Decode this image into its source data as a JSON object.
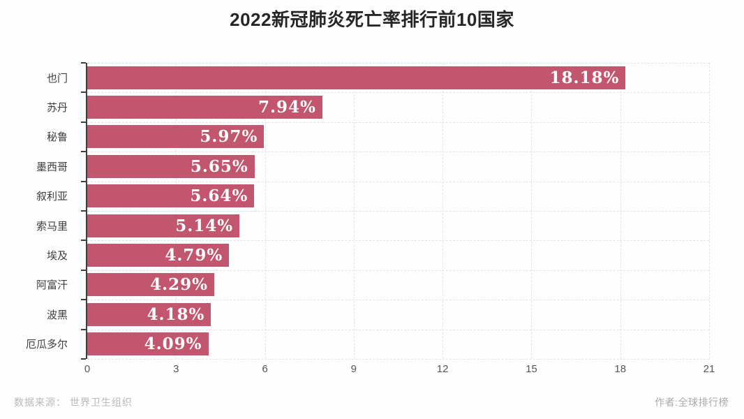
{
  "page": {
    "background": "#fefefe"
  },
  "title": "2022新冠肺炎死亡率排行前10国家",
  "footer": {
    "source": "数据来源： 世界卫生组织",
    "author": "作者:全球排行榜"
  },
  "colors": {
    "bar": "#c2566e",
    "value_label": "#ffffff",
    "axis": "#3f3f3f",
    "gridline": "#dfe3ea",
    "title_text": "#262626",
    "category_text": "#3d3d3d",
    "tick_text": "#555555",
    "footer_text": "#b9b9b9"
  },
  "chart_data": {
    "type": "bar",
    "orientation": "horizontal",
    "title": "2022新冠肺炎死亡率排行前10国家",
    "categories": [
      "也门",
      "苏丹",
      "秘鲁",
      "墨西哥",
      "叙利亚",
      "索马里",
      "埃及",
      "阿富汗",
      "波黑",
      "厄瓜多尔"
    ],
    "values": [
      18.18,
      7.94,
      5.97,
      5.65,
      5.64,
      5.14,
      4.79,
      4.29,
      4.18,
      4.09
    ],
    "value_labels": [
      "18.18%",
      "7.94%",
      "5.97%",
      "5.65%",
      "5.64%",
      "5.14%",
      "4.79%",
      "4.29%",
      "4.18%",
      "4.09%"
    ],
    "xlabel": "",
    "ylabel": "",
    "xlim": [
      0,
      21
    ],
    "xticks": [
      0,
      3,
      6,
      9,
      12,
      15,
      18,
      21
    ],
    "grid": "dashed, vertical at each x tick and horizontal at each category boundary",
    "legend": null,
    "value_label_position": "inside-right of bar"
  }
}
